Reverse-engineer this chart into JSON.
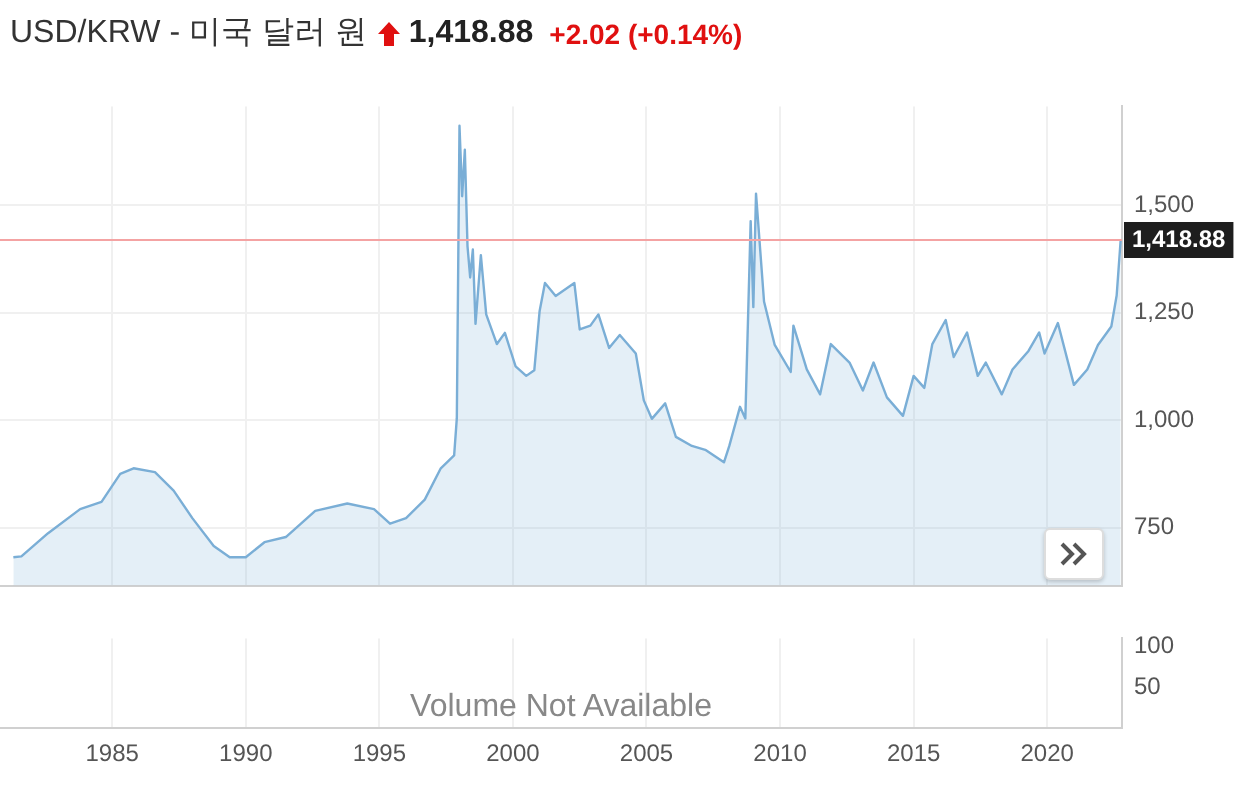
{
  "chart_data": [
    {
      "type": "area",
      "title": "USD/KRW - 미국 달러 원",
      "subtitle": "1,418.88 +2.02 (+0.14%)",
      "x": [
        1981.3,
        1981.6,
        1982.6,
        1983.8,
        1984.6,
        1985.3,
        1985.8,
        1986.6,
        1987.3,
        1988.0,
        1988.8,
        1989.4,
        1990.0,
        1990.7,
        1991.5,
        1992.6,
        1993.8,
        1994.8,
        1995.4,
        1996.0,
        1996.7,
        1997.3,
        1997.8,
        1997.9,
        1998.0,
        1998.1,
        1998.2,
        1998.3,
        1998.4,
        1998.5,
        1998.6,
        1998.8,
        1999.0,
        1999.4,
        1999.7,
        2000.1,
        2000.5,
        2000.8,
        2001.0,
        2001.2,
        2001.6,
        2002.3,
        2002.5,
        2002.9,
        2003.2,
        2003.6,
        2004.0,
        2004.6,
        2004.9,
        2005.2,
        2005.7,
        2006.1,
        2006.7,
        2007.2,
        2007.9,
        2008.1,
        2008.5,
        2008.7,
        2008.9,
        2009.0,
        2009.1,
        2009.4,
        2009.8,
        2010.4,
        2010.5,
        2011.0,
        2011.5,
        2011.9,
        2012.6,
        2013.1,
        2013.5,
        2014.0,
        2014.6,
        2015.0,
        2015.4,
        2015.7,
        2016.2,
        2016.5,
        2017.0,
        2017.4,
        2017.7,
        2018.3,
        2018.7,
        2019.3,
        2019.7,
        2019.9,
        2020.4,
        2021.0,
        2021.5,
        2021.9,
        2022.4,
        2022.6,
        2022.75
      ],
      "series": [
        {
          "color": "#7aaed6",
          "values": [
            681,
            683,
            737,
            793,
            810,
            875,
            888,
            879,
            836,
            772,
            707,
            681,
            681,
            716,
            728,
            789,
            806,
            793,
            759,
            772,
            815,
            888,
            918,
            1004,
            1685,
            1521,
            1629,
            1405,
            1332,
            1397,
            1224,
            1384,
            1246,
            1177,
            1203,
            1125,
            1103,
            1116,
            1254,
            1319,
            1289,
            1319,
            1211,
            1220,
            1246,
            1168,
            1198,
            1155,
            1046,
            1003,
            1039,
            961,
            940,
            931,
            902,
            940,
            1031,
            1004,
            1463,
            1263,
            1527,
            1276,
            1175,
            1112,
            1220,
            1118,
            1060,
            1177,
            1134,
            1069,
            1134,
            1053,
            1010,
            1103,
            1075,
            1177,
            1233,
            1147,
            1204,
            1103,
            1134,
            1060,
            1118,
            1161,
            1204,
            1155,
            1226,
            1082,
            1118,
            1175,
            1218,
            1290,
            1419
          ]
        }
      ],
      "xlim": [
        1980.8,
        2022.8
      ],
      "xticks": [
        1985,
        1990,
        1995,
        2000,
        2005,
        2010,
        2015,
        2020
      ],
      "ylim": [
        615,
        1730
      ],
      "yticks": [
        {
          "value": 750,
          "label": "750"
        },
        {
          "value": 1000,
          "label": "1,000"
        },
        {
          "value": 1250,
          "label": "1,250"
        },
        {
          "value": 1500,
          "label": "1,500"
        }
      ],
      "ref_lines": [
        {
          "axis": "y",
          "value": 1418.88,
          "label": "1,418.88",
          "color": "#f4a3a3"
        }
      ],
      "grid": true,
      "tick_labels": "y",
      "marker": "none"
    },
    {
      "type": "bar",
      "annotations": [
        "Volume Not Available"
      ],
      "xlim": [
        1980.8,
        2022.8
      ],
      "xticks": [
        1985,
        1990,
        1995,
        2000,
        2005,
        2010,
        2015,
        2020
      ],
      "ylim": [
        0,
        110
      ],
      "yticks": [
        50,
        100
      ],
      "grid": "x"
    }
  ]
}
